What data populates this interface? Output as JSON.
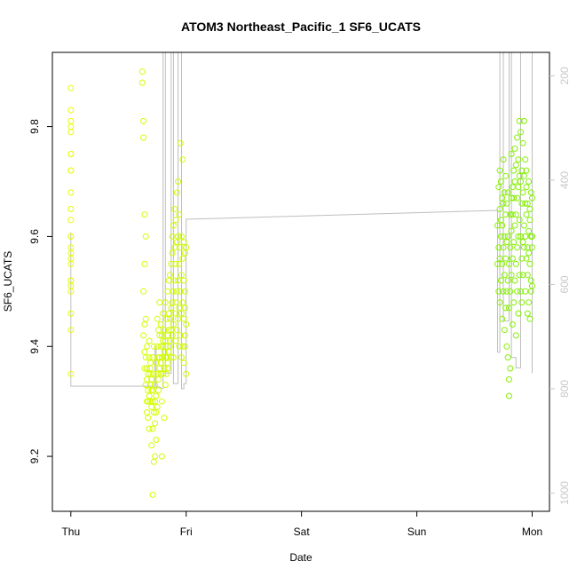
{
  "chart_data": {
    "type": "scatter",
    "title": "ATOM3 Northeast_Pacific_1 SF6_UCATS",
    "xlabel": "Date",
    "ylabel": "SF6_UCATS",
    "x_ticks": [
      {
        "value": 0,
        "label": "Thu"
      },
      {
        "value": 1,
        "label": "Fri"
      },
      {
        "value": 2,
        "label": "Sat"
      },
      {
        "value": 3,
        "label": "Sun"
      },
      {
        "value": 4,
        "label": "Mon"
      }
    ],
    "xlim": [
      -0.16,
      4.15
    ],
    "ylim": [
      9.1,
      9.935
    ],
    "y_ticks": [
      9.2,
      9.4,
      9.6,
      9.8
    ],
    "y2_label": "",
    "y2_ticks": [
      200,
      400,
      600,
      800,
      1000
    ],
    "y2lim": [
      1035,
      155
    ],
    "y2_reversed": true,
    "colors": {
      "series_start": "#e6ff00",
      "series_end": "#80f000",
      "altitude_line": "#bebebe",
      "axis": "#000000",
      "right_axis": "#c8c8c8"
    },
    "grid": false,
    "legend": "none",
    "series": [
      {
        "x": [
          0.0,
          0.0,
          0.0,
          0.0,
          0.0,
          0.0,
          0.0,
          0.0,
          0.0,
          0.0,
          0.0,
          0.0,
          0.0,
          0.0,
          0.0,
          0.0,
          0.0,
          0.0,
          0.0,
          0.0,
          0.0,
          0.0,
          0.0,
          0.0,
          0.0
        ],
        "y": [
          9.35,
          9.43,
          9.46,
          9.5,
          9.51,
          9.52,
          9.52,
          9.55,
          9.56,
          9.57,
          9.58,
          9.6,
          9.63,
          9.65,
          9.68,
          9.72,
          9.72,
          9.75,
          9.75,
          9.79,
          9.8,
          9.81,
          9.83,
          9.87,
          9.6
        ]
      },
      {
        "x": [
          0.62,
          0.62,
          0.63,
          0.63,
          0.63,
          0.63,
          0.64,
          0.64,
          0.64,
          0.64,
          0.64,
          0.65,
          0.65,
          0.65,
          0.65,
          0.66,
          0.66,
          0.66,
          0.66,
          0.66,
          0.67,
          0.67,
          0.67,
          0.67,
          0.68,
          0.68,
          0.68,
          0.68,
          0.69,
          0.69,
          0.69,
          0.69,
          0.69,
          0.7,
          0.7,
          0.7,
          0.7,
          0.71,
          0.71,
          0.71,
          0.71,
          0.71,
          0.72,
          0.72,
          0.72,
          0.72,
          0.73,
          0.73,
          0.73,
          0.73,
          0.74,
          0.74,
          0.74,
          0.74,
          0.75,
          0.75,
          0.75,
          0.75,
          0.76,
          0.76,
          0.76,
          0.76,
          0.77,
          0.77,
          0.77,
          0.77,
          0.78,
          0.78,
          0.78,
          0.78,
          0.79,
          0.79,
          0.79,
          0.79,
          0.8,
          0.8,
          0.8,
          0.8,
          0.81,
          0.81,
          0.81,
          0.81,
          0.82,
          0.82,
          0.82,
          0.82,
          0.83,
          0.83,
          0.83,
          0.83,
          0.84,
          0.84,
          0.84,
          0.84,
          0.85,
          0.85,
          0.85,
          0.85,
          0.86,
          0.86,
          0.86,
          0.86,
          0.87,
          0.87,
          0.87,
          0.87,
          0.88,
          0.88,
          0.88,
          0.88,
          0.89,
          0.89,
          0.89,
          0.89,
          0.9,
          0.9,
          0.9,
          0.9,
          0.91,
          0.91,
          0.91,
          0.91,
          0.92,
          0.92,
          0.92,
          0.92,
          0.93,
          0.93,
          0.93,
          0.93,
          0.94,
          0.94,
          0.94,
          0.94,
          0.95,
          0.95,
          0.95,
          0.95,
          0.96,
          0.96,
          0.96,
          0.96,
          0.97,
          0.97,
          0.97,
          0.97,
          0.98,
          0.98,
          0.98,
          0.98,
          0.99,
          0.99,
          0.99,
          0.99,
          0.99,
          1.0,
          1.0,
          1.0
        ],
        "y": [
          9.88,
          9.9,
          9.78,
          9.81,
          9.42,
          9.5,
          9.55,
          9.64,
          9.39,
          9.44,
          9.36,
          9.33,
          9.38,
          9.6,
          9.45,
          9.3,
          9.36,
          9.28,
          9.34,
          9.4,
          9.32,
          9.35,
          9.3,
          9.27,
          9.25,
          9.38,
          9.41,
          9.31,
          9.33,
          9.35,
          9.3,
          9.36,
          9.37,
          9.29,
          9.32,
          9.34,
          9.22,
          9.25,
          9.3,
          9.38,
          9.13,
          9.32,
          9.19,
          9.28,
          9.35,
          9.4,
          9.2,
          9.26,
          9.3,
          9.33,
          9.23,
          9.31,
          9.37,
          9.28,
          9.35,
          9.4,
          9.29,
          9.45,
          9.34,
          9.38,
          9.43,
          9.32,
          9.36,
          9.42,
          9.48,
          9.38,
          9.35,
          9.4,
          9.44,
          9.37,
          9.38,
          9.42,
          9.3,
          9.2,
          9.35,
          9.4,
          9.46,
          9.41,
          9.27,
          9.36,
          9.39,
          9.43,
          9.33,
          9.38,
          9.48,
          9.41,
          9.35,
          9.4,
          9.45,
          9.38,
          9.37,
          9.42,
          9.5,
          9.36,
          9.39,
          9.43,
          9.46,
          9.52,
          9.4,
          9.45,
          9.53,
          9.41,
          9.38,
          9.47,
          9.55,
          9.43,
          9.42,
          9.48,
          9.57,
          9.6,
          9.44,
          9.5,
          9.38,
          9.62,
          9.46,
          9.52,
          9.58,
          9.65,
          9.41,
          9.48,
          9.55,
          9.63,
          9.43,
          9.5,
          9.59,
          9.68,
          9.45,
          9.52,
          9.6,
          9.7,
          9.4,
          9.47,
          9.55,
          9.64,
          9.42,
          9.5,
          9.58,
          9.77,
          9.38,
          9.46,
          9.53,
          9.6,
          9.4,
          9.48,
          9.56,
          9.74,
          9.37,
          9.45,
          9.52,
          9.59,
          9.42,
          9.5,
          9.57,
          9.4,
          9.47,
          9.35,
          9.44,
          9.58
        ]
      },
      {
        "x": [
          3.7,
          3.7,
          3.71,
          3.71,
          3.71,
          3.72,
          3.72,
          3.72,
          3.72,
          3.73,
          3.73,
          3.73,
          3.73,
          3.74,
          3.74,
          3.74,
          3.74,
          3.75,
          3.75,
          3.75,
          3.75,
          3.76,
          3.76,
          3.76,
          3.76,
          3.77,
          3.77,
          3.77,
          3.77,
          3.78,
          3.78,
          3.78,
          3.78,
          3.79,
          3.79,
          3.79,
          3.79,
          3.8,
          3.8,
          3.8,
          3.8,
          3.81,
          3.81,
          3.81,
          3.81,
          3.82,
          3.82,
          3.82,
          3.82,
          3.83,
          3.83,
          3.83,
          3.83,
          3.84,
          3.84,
          3.84,
          3.84,
          3.85,
          3.85,
          3.85,
          3.85,
          3.86,
          3.86,
          3.86,
          3.86,
          3.87,
          3.87,
          3.87,
          3.87,
          3.88,
          3.88,
          3.88,
          3.88,
          3.89,
          3.89,
          3.89,
          3.89,
          3.9,
          3.9,
          3.9,
          3.9,
          3.91,
          3.91,
          3.91,
          3.91,
          3.92,
          3.92,
          3.92,
          3.92,
          3.93,
          3.93,
          3.93,
          3.93,
          3.94,
          3.94,
          3.94,
          3.94,
          3.95,
          3.95,
          3.95,
          3.95,
          3.96,
          3.96,
          3.96,
          3.96,
          3.97,
          3.97,
          3.97,
          3.97,
          3.98,
          3.98,
          3.98,
          3.98,
          3.99,
          3.99,
          3.99,
          3.99,
          4.0,
          4.0,
          4.0,
          4.0
        ],
        "y": [
          9.55,
          9.62,
          9.69,
          9.5,
          9.58,
          9.65,
          9.72,
          9.48,
          9.56,
          9.63,
          9.7,
          9.52,
          9.6,
          9.67,
          9.45,
          9.55,
          9.62,
          9.74,
          9.5,
          9.58,
          9.66,
          9.43,
          9.53,
          9.6,
          9.68,
          9.47,
          9.56,
          9.64,
          9.71,
          9.5,
          9.59,
          9.66,
          9.4,
          9.38,
          9.52,
          9.6,
          9.68,
          9.34,
          9.31,
          9.47,
          9.55,
          9.64,
          9.36,
          9.5,
          9.58,
          9.67,
          9.75,
          9.53,
          9.61,
          9.69,
          9.44,
          9.56,
          9.64,
          9.72,
          9.48,
          9.59,
          9.67,
          9.76,
          9.52,
          9.62,
          9.7,
          9.42,
          9.55,
          9.64,
          9.73,
          9.5,
          9.58,
          9.67,
          9.78,
          9.46,
          9.6,
          9.69,
          9.74,
          9.53,
          9.63,
          9.71,
          9.81,
          9.5,
          9.6,
          9.7,
          9.79,
          9.56,
          9.66,
          9.72,
          9.48,
          9.59,
          9.68,
          9.77,
          9.53,
          9.62,
          9.71,
          9.81,
          9.58,
          9.66,
          9.74,
          9.5,
          9.6,
          9.69,
          9.56,
          9.64,
          9.72,
          9.46,
          9.58,
          9.66,
          9.53,
          9.61,
          9.7,
          9.48,
          9.57,
          9.65,
          9.45,
          9.55,
          9.63,
          9.52,
          9.6,
          9.68,
          9.5,
          9.58,
          9.67,
          9.51,
          9.6
        ]
      }
    ],
    "altitude_profile": {
      "x": [
        0.0,
        0.0,
        0.73,
        0.73,
        0.74,
        0.74,
        0.75,
        0.8,
        0.8,
        0.82,
        0.82,
        0.87,
        0.87,
        0.89,
        0.89,
        0.93,
        0.93,
        0.96,
        0.96,
        0.98,
        0.98,
        1.0,
        1.0,
        3.7,
        3.7,
        3.72,
        3.72,
        3.75,
        3.75,
        3.8,
        3.8,
        3.82,
        3.82,
        3.86,
        3.86,
        3.9,
        3.9,
        4.0,
        4.0
      ],
      "y": [
        500,
        795,
        795,
        720,
        720,
        800,
        795,
        800,
        150,
        150,
        770,
        770,
        150,
        150,
        790,
        790,
        150,
        150,
        800,
        800,
        790,
        790,
        475,
        458,
        730,
        730,
        150,
        150,
        670,
        670,
        150,
        150,
        740,
        740,
        760,
        760,
        150,
        150,
        770
      ]
    }
  }
}
